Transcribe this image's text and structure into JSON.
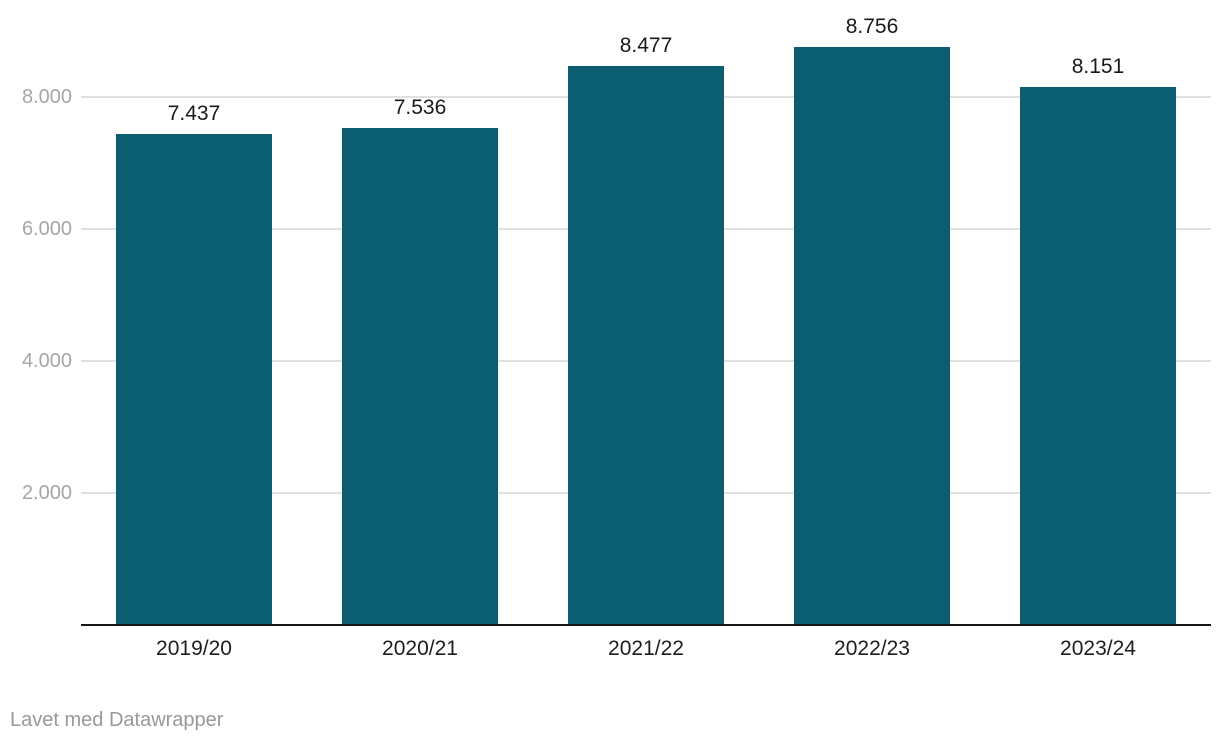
{
  "chart_data": {
    "type": "bar",
    "title": "",
    "xlabel": "",
    "ylabel": "",
    "categories": [
      "2019/20",
      "2020/21",
      "2021/22",
      "2022/23",
      "2023/24"
    ],
    "values": [
      7437,
      7536,
      8477,
      8756,
      8151
    ],
    "value_labels": [
      "7.437",
      "7.536",
      "8.477",
      "8.756",
      "8.151"
    ],
    "y_ticks": [
      {
        "value": 2000,
        "label": "2.000"
      },
      {
        "value": 4000,
        "label": "4.000"
      },
      {
        "value": 6000,
        "label": "6.000"
      },
      {
        "value": 8000,
        "label": "8.000"
      }
    ],
    "ylim": [
      0,
      8800
    ],
    "grid": "horizontal-only",
    "legend": "none",
    "colors": {
      "bar": "#0a5e6f",
      "gridline": "#e0e0e0",
      "axis_line": "#161616",
      "tick_label": "#a6a6a6",
      "category_label": "#1d1d1d",
      "value_label": "#1a1a1a",
      "background": "#ffffff"
    }
  },
  "footer": {
    "attribution": "Lavet med Datawrapper"
  }
}
